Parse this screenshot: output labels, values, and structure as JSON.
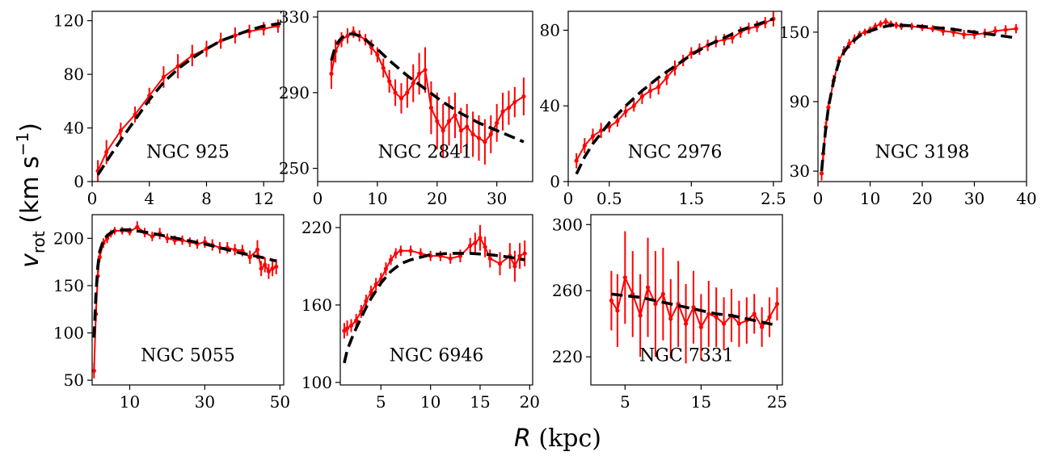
{
  "colors": {
    "data": "#ff0000",
    "model": "#000000",
    "frame": "#000000"
  },
  "figure": {
    "ylabel_main": "v",
    "ylabel_sub": "rot",
    "ylabel_units_open": " (km s",
    "ylabel_units_exp": "−1",
    "ylabel_units_close": ")",
    "xlabel_var": "R",
    "xlabel_units": " (kpc)"
  },
  "chart_data": [
    {
      "type": "line",
      "title": "NGC 925",
      "xlim": [
        0,
        13.4
      ],
      "ylim": [
        0,
        127
      ],
      "xticks": [
        0,
        4,
        8,
        12
      ],
      "yticks": [
        0,
        40,
        80,
        120
      ],
      "xtick_labels": [
        "0",
        "4",
        "8",
        "12"
      ],
      "ytick_labels": [
        "0",
        "40",
        "80",
        "120"
      ],
      "series": [
        {
          "name": "observed",
          "x": [
            0.4,
            1,
            2,
            3,
            4,
            5,
            6,
            7,
            8,
            9,
            10,
            11,
            12,
            13
          ],
          "y": [
            8,
            22,
            38,
            50,
            64,
            78,
            86,
            94,
            99,
            105,
            109,
            112,
            114,
            116
          ],
          "err": [
            8,
            9,
            6,
            6,
            6,
            8,
            9,
            8,
            6,
            6,
            6,
            5,
            5,
            5
          ]
        },
        {
          "name": "model",
          "x": [
            0.4,
            1,
            2,
            3,
            4,
            5,
            6,
            7,
            8,
            9,
            10,
            11,
            12,
            13.2
          ],
          "y": [
            5,
            15,
            31,
            46,
            61,
            74,
            84,
            92,
            99,
            105,
            109,
            113,
            116,
            118
          ]
        }
      ]
    },
    {
      "type": "line",
      "title": "NGC 2841",
      "xlim": [
        0,
        36
      ],
      "ylim": [
        243,
        333
      ],
      "xticks": [
        0,
        10,
        20,
        30
      ],
      "yticks": [
        250,
        290,
        330
      ],
      "xtick_labels": [
        "0",
        "10",
        "20",
        "30"
      ],
      "ytick_labels": [
        "250",
        "290",
        "330"
      ],
      "series": [
        {
          "name": "observed",
          "x": [
            2.3,
            3,
            4,
            5,
            6,
            7,
            8,
            9,
            10,
            11,
            12,
            13,
            14,
            15,
            16,
            17,
            18,
            19,
            20,
            21,
            22,
            23,
            24,
            25,
            26,
            27,
            28,
            29,
            30,
            31,
            32,
            33,
            34.5
          ],
          "y": [
            300,
            312,
            318,
            320,
            322,
            320,
            318,
            314,
            310,
            303,
            296,
            290,
            287,
            290,
            295,
            300,
            302,
            282,
            275,
            270,
            275,
            278,
            270,
            272,
            268,
            266,
            264,
            268,
            274,
            280,
            282,
            285,
            288
          ],
          "err": [
            8,
            6,
            4,
            4,
            3,
            3,
            3,
            4,
            4,
            5,
            6,
            7,
            8,
            8,
            10,
            11,
            12,
            14,
            15,
            14,
            13,
            12,
            12,
            12,
            12,
            12,
            12,
            10,
            10,
            10,
            9,
            8,
            10
          ]
        },
        {
          "name": "model",
          "x": [
            2.3,
            3,
            4,
            5,
            6,
            7,
            8,
            10,
            12,
            15,
            18,
            21,
            24,
            27,
            30,
            33,
            34.5
          ],
          "y": [
            307,
            315,
            319,
            321,
            321,
            320,
            318,
            313,
            307,
            299,
            292,
            285,
            279,
            274,
            270,
            266,
            264
          ]
        }
      ]
    },
    {
      "type": "line",
      "title": "NGC 2976",
      "xlim": [
        0,
        2.6
      ],
      "ylim": [
        0,
        90
      ],
      "xticks": [
        0,
        0.5,
        1.5,
        2.5
      ],
      "yticks": [
        0,
        40,
        80
      ],
      "xtick_labels": [
        "0",
        "0.5",
        "1.5",
        "2.5"
      ],
      "ytick_labels": [
        "0",
        "40",
        "80"
      ],
      "series": [
        {
          "name": "observed",
          "x": [
            0.1,
            0.2,
            0.3,
            0.4,
            0.5,
            0.6,
            0.7,
            0.8,
            0.9,
            1.0,
            1.1,
            1.2,
            1.3,
            1.4,
            1.5,
            1.6,
            1.7,
            1.8,
            1.9,
            2.0,
            2.1,
            2.2,
            2.3,
            2.4,
            2.5
          ],
          "y": [
            11,
            19,
            24,
            27,
            29,
            32,
            37,
            40,
            45,
            48,
            50,
            55,
            60,
            64,
            68,
            70,
            72,
            74,
            75,
            76,
            79,
            81,
            82,
            84,
            86
          ],
          "err": [
            4,
            4,
            4,
            4,
            3,
            3,
            3,
            3,
            4,
            4,
            4,
            4,
            4,
            3,
            3,
            3,
            3,
            3,
            3,
            3,
            3,
            3,
            3,
            3,
            4
          ]
        },
        {
          "name": "model",
          "x": [
            0.1,
            0.2,
            0.3,
            0.5,
            0.7,
            0.9,
            1.1,
            1.3,
            1.5,
            1.7,
            1.9,
            2.1,
            2.3,
            2.5
          ],
          "y": [
            4,
            13,
            20,
            31,
            40,
            48,
            55,
            61,
            67,
            72,
            76,
            80,
            83,
            86
          ]
        }
      ]
    },
    {
      "type": "line",
      "title": "NGC 3198",
      "xlim": [
        0,
        40
      ],
      "ylim": [
        21,
        168
      ],
      "xticks": [
        0,
        10,
        20,
        30,
        40
      ],
      "yticks": [
        30,
        90,
        150
      ],
      "xtick_labels": [
        "0",
        "10",
        "20",
        "30",
        "40"
      ],
      "ytick_labels": [
        "30",
        "90",
        "150"
      ],
      "series": [
        {
          "name": "observed",
          "x": [
            0.7,
            1,
            1.5,
            2,
            3,
            4,
            5,
            6,
            7,
            8,
            9,
            10,
            11,
            12,
            13,
            14,
            15,
            16,
            18,
            20,
            22,
            24,
            26,
            28,
            30,
            32,
            34,
            36,
            38
          ],
          "y": [
            28,
            45,
            68,
            85,
            108,
            125,
            134,
            140,
            144,
            148,
            150,
            152,
            155,
            157,
            159,
            157,
            156,
            155,
            155,
            154,
            153,
            151,
            150,
            148,
            148,
            149,
            151,
            152,
            153
          ],
          "err": [
            6,
            6,
            5,
            5,
            5,
            4,
            4,
            4,
            4,
            3,
            3,
            3,
            3,
            3,
            3,
            3,
            3,
            3,
            3,
            3,
            3,
            4,
            4,
            4,
            4,
            4,
            4,
            4,
            4
          ]
        },
        {
          "name": "model",
          "x": [
            0.7,
            1,
            1.5,
            2,
            3,
            4,
            5,
            6,
            7,
            8,
            10,
            12,
            14,
            16,
            20,
            25,
            30,
            35,
            38
          ],
          "y": [
            30,
            45,
            67,
            85,
            108,
            124,
            133,
            139,
            143,
            147,
            151,
            154,
            156,
            156,
            155,
            153,
            150,
            147,
            145
          ]
        }
      ]
    },
    {
      "type": "line",
      "title": "NGC 5055",
      "xlim": [
        0,
        51
      ],
      "ylim": [
        45,
        225
      ],
      "xticks": [
        10,
        30,
        50
      ],
      "yticks": [
        50,
        100,
        150,
        200
      ],
      "xtick_labels": [
        "10",
        "30",
        "50"
      ],
      "ytick_labels": [
        "50",
        "100",
        "150",
        "200"
      ],
      "series": [
        {
          "name": "observed",
          "x": [
            0.5,
            1,
            1.5,
            2,
            3,
            4,
            5,
            6,
            8,
            10,
            12,
            14,
            16,
            18,
            20,
            22,
            24,
            26,
            28,
            30,
            32,
            34,
            36,
            38,
            40,
            42,
            44,
            45,
            46,
            47,
            48,
            49
          ],
          "y": [
            60,
            120,
            160,
            180,
            195,
            200,
            205,
            208,
            208,
            207,
            212,
            206,
            202,
            205,
            200,
            198,
            198,
            196,
            194,
            196,
            193,
            190,
            190,
            188,
            187,
            180,
            188,
            168,
            172,
            165,
            168,
            170
          ],
          "err": [
            8,
            8,
            6,
            5,
            5,
            5,
            4,
            4,
            4,
            4,
            6,
            5,
            5,
            6,
            5,
            5,
            5,
            5,
            5,
            6,
            6,
            6,
            6,
            6,
            6,
            7,
            10,
            8,
            8,
            8,
            8,
            8
          ]
        },
        {
          "name": "model",
          "x": [
            0.5,
            1,
            1.5,
            2,
            3,
            4,
            5,
            6,
            8,
            10,
            15,
            20,
            25,
            30,
            35,
            40,
            45,
            49
          ],
          "y": [
            95,
            140,
            170,
            186,
            198,
            203,
            206,
            208,
            209,
            209,
            206,
            202,
            198,
            194,
            189,
            184,
            180,
            176
          ]
        }
      ]
    },
    {
      "type": "line",
      "title": "NGC 6946",
      "xlim": [
        0.9,
        20.3
      ],
      "ylim": [
        98,
        230
      ],
      "xticks": [
        5,
        10,
        15,
        20
      ],
      "yticks": [
        100,
        160,
        220
      ],
      "xtick_labels": [
        "5",
        "10",
        "15",
        "20"
      ],
      "ytick_labels": [
        "100",
        "160",
        "220"
      ],
      "series": [
        {
          "name": "observed",
          "x": [
            1.3,
            1.6,
            2,
            2.5,
            3,
            3.5,
            4,
            4.5,
            5,
            5.5,
            6,
            6.5,
            7,
            8,
            9,
            10,
            11,
            12,
            13,
            14,
            14.5,
            15,
            15.5,
            16,
            17,
            18,
            18.5,
            19,
            19.5
          ],
          "y": [
            140,
            142,
            144,
            148,
            155,
            163,
            170,
            176,
            180,
            188,
            195,
            200,
            202,
            202,
            200,
            198,
            198,
            196,
            198,
            206,
            208,
            212,
            205,
            196,
            192,
            198,
            190,
            198,
            200
          ],
          "err": [
            6,
            6,
            5,
            5,
            5,
            5,
            5,
            5,
            5,
            5,
            4,
            4,
            4,
            4,
            4,
            4,
            4,
            4,
            5,
            6,
            8,
            10,
            8,
            7,
            9,
            10,
            12,
            10,
            10
          ]
        },
        {
          "name": "model",
          "x": [
            1.3,
            1.6,
            2,
            2.5,
            3,
            3.5,
            4,
            4.5,
            5,
            6,
            7,
            8,
            10,
            12,
            14,
            16,
            18,
            19.5
          ],
          "y": [
            115,
            125,
            133,
            142,
            150,
            158,
            165,
            171,
            177,
            186,
            192,
            195,
            199,
            200,
            200,
            199,
            197,
            195
          ]
        }
      ]
    },
    {
      "type": "line",
      "title": "NGC 7331",
      "xlim": [
        0.5,
        25.7
      ],
      "ylim": [
        203,
        306
      ],
      "xticks": [
        5,
        15,
        25
      ],
      "yticks": [
        220,
        260,
        300
      ],
      "xtick_labels": [
        "5",
        "15",
        "25"
      ],
      "ytick_labels": [
        "220",
        "260",
        "300"
      ],
      "series": [
        {
          "name": "observed",
          "x": [
            3.2,
            4,
            5,
            6,
            7,
            8,
            9,
            10,
            11,
            12,
            13,
            14,
            15,
            16,
            17,
            18,
            19,
            20,
            21,
            22,
            23,
            24,
            25
          ],
          "y": [
            254,
            248,
            268,
            258,
            245,
            262,
            252,
            258,
            243,
            252,
            240,
            250,
            238,
            246,
            244,
            240,
            245,
            240,
            242,
            246,
            238,
            244,
            252
          ],
          "err": [
            18,
            22,
            28,
            26,
            25,
            30,
            32,
            28,
            24,
            26,
            24,
            22,
            20,
            20,
            18,
            16,
            16,
            14,
            14,
            12,
            12,
            12,
            10
          ]
        },
        {
          "name": "model",
          "x": [
            3.2,
            5,
            7,
            9,
            11,
            13,
            15,
            17,
            19,
            21,
            23,
            25
          ],
          "y": [
            258,
            257,
            256,
            254,
            252,
            250,
            248,
            246,
            245,
            243,
            241,
            239
          ]
        }
      ]
    }
  ]
}
